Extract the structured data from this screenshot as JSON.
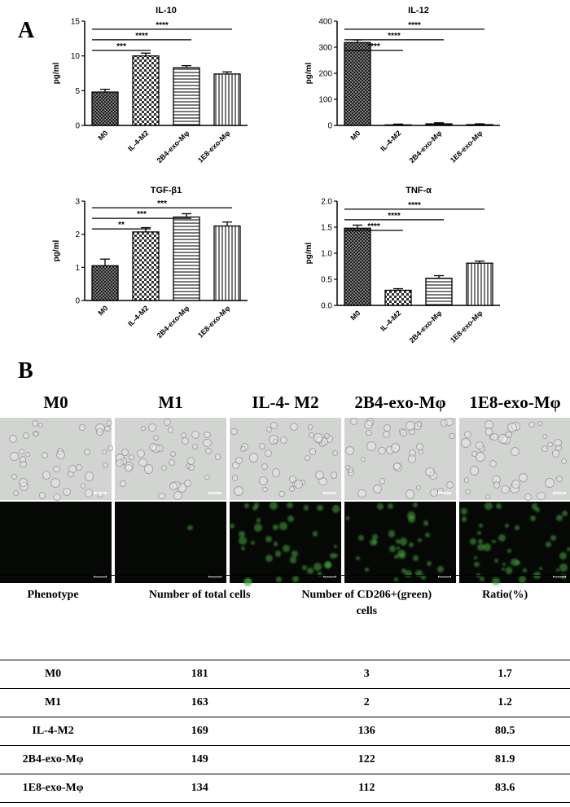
{
  "panels": {
    "a": "A",
    "b": "B"
  },
  "chart_data": [
    {
      "type": "bar",
      "title": "IL-10",
      "ylabel": "pg/ml",
      "categories": [
        "M0",
        "IL-4-M2",
        "2B4-exo-Mφ",
        "1E8-exo-Mφ"
      ],
      "values": [
        4.8,
        10.0,
        8.3,
        7.4
      ],
      "errors": [
        0.4,
        0.4,
        0.3,
        0.3
      ],
      "ylim": [
        0,
        15
      ],
      "yticks": [
        "0",
        "5",
        "10",
        "15"
      ],
      "significance": [
        {
          "from": "M0",
          "to": "IL-4-M2",
          "label": "***"
        },
        {
          "from": "M0",
          "to": "2B4-exo-Mφ",
          "label": "****"
        },
        {
          "from": "M0",
          "to": "1E8-exo-Mφ",
          "label": "****"
        }
      ],
      "grid": false
    },
    {
      "type": "bar",
      "title": "IL-12",
      "ylabel": "pg/ml",
      "categories": [
        "M0",
        "IL-4-M2",
        "2B4-exo-Mφ",
        "1E8-exo-Mφ"
      ],
      "values": [
        318,
        2,
        6,
        3
      ],
      "errors": [
        10,
        3,
        4,
        3
      ],
      "ylim": [
        0,
        400
      ],
      "yticks": [
        "0",
        "100",
        "200",
        "300",
        "400"
      ],
      "significance": [
        {
          "from": "M0",
          "to": "IL-4-M2",
          "label": "****"
        },
        {
          "from": "M0",
          "to": "2B4-exo-Mφ",
          "label": "****"
        },
        {
          "from": "M0",
          "to": "1E8-exo-Mφ",
          "label": "****"
        }
      ],
      "grid": false
    },
    {
      "type": "bar",
      "title": "TGF-β1",
      "ylabel": "pg/ml",
      "categories": [
        "M0",
        "IL-4-M2",
        "2B4-exo-Mφ",
        "1E8-exo-Mφ"
      ],
      "values": [
        1.05,
        2.07,
        2.52,
        2.25
      ],
      "errors": [
        0.2,
        0.13,
        0.1,
        0.12
      ],
      "ylim": [
        0,
        3
      ],
      "yticks": [
        "0",
        "1",
        "2",
        "3"
      ],
      "significance": [
        {
          "from": "M0",
          "to": "IL-4-M2",
          "label": "**"
        },
        {
          "from": "M0",
          "to": "2B4-exo-Mφ",
          "label": "***"
        },
        {
          "from": "M0",
          "to": "1E8-exo-Mφ",
          "label": "***"
        }
      ],
      "grid": false
    },
    {
      "type": "bar",
      "title": "TNF-α",
      "ylabel": "pg/ml",
      "categories": [
        "M0",
        "IL-4-M2",
        "2B4-exo-Mφ",
        "1E8-exo-Mφ"
      ],
      "values": [
        1.48,
        0.29,
        0.52,
        0.81
      ],
      "errors": [
        0.06,
        0.03,
        0.05,
        0.04
      ],
      "ylim": [
        0,
        2.0
      ],
      "yticks": [
        "0.0",
        "0.5",
        "1.0",
        "1.5",
        "2.0"
      ],
      "significance": [
        {
          "from": "M0",
          "to": "IL-4-M2",
          "label": "****"
        },
        {
          "from": "M0",
          "to": "2B4-exo-Mφ",
          "label": "****"
        },
        {
          "from": "M0",
          "to": "1E8-exo-Mφ",
          "label": "****"
        }
      ],
      "grid": false
    }
  ],
  "micrographs": {
    "conditions": [
      "M0",
      "M1",
      "IL-4- M2",
      "2B4-exo-Mφ",
      "1E8-exo-Mφ"
    ],
    "green_intensity": [
      0.0,
      0.02,
      0.55,
      0.45,
      0.6
    ]
  },
  "table": {
    "headers": [
      "Phenotype",
      "Number of total cells",
      "Number of CD206+(green) cells",
      "Ratio(%)"
    ],
    "rows": [
      [
        "M0",
        "181",
        "3",
        "1.7"
      ],
      [
        "M1",
        "163",
        "2",
        "1.2"
      ],
      [
        "IL-4-M2",
        "169",
        "136",
        "80.5"
      ],
      [
        "2B4-exo-Mφ",
        "149",
        "122",
        "81.9"
      ],
      [
        "1E8-exo-Mφ",
        "134",
        "112",
        "83.6"
      ]
    ]
  }
}
